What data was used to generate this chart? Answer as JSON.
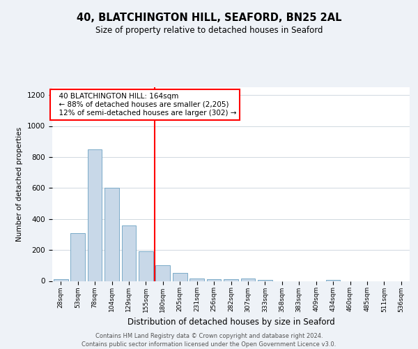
{
  "title1": "40, BLATCHINGTON HILL, SEAFORD, BN25 2AL",
  "title2": "Size of property relative to detached houses in Seaford",
  "xlabel": "Distribution of detached houses by size in Seaford",
  "ylabel": "Number of detached properties",
  "categories": [
    "28sqm",
    "53sqm",
    "78sqm",
    "104sqm",
    "129sqm",
    "155sqm",
    "180sqm",
    "205sqm",
    "231sqm",
    "256sqm",
    "282sqm",
    "307sqm",
    "333sqm",
    "358sqm",
    "383sqm",
    "409sqm",
    "434sqm",
    "460sqm",
    "485sqm",
    "511sqm",
    "536sqm"
  ],
  "values": [
    10,
    310,
    850,
    600,
    360,
    190,
    100,
    50,
    15,
    10,
    10,
    15,
    5,
    0,
    0,
    0,
    8,
    0,
    0,
    0,
    0
  ],
  "bar_color": "#c8d8e8",
  "bar_edge_color": "#7aaac8",
  "vline_x": 5.5,
  "vline_color": "red",
  "annotation_text": "  40 BLATCHINGTON HILL: 164sqm\n  ← 88% of detached houses are smaller (2,205)\n  12% of semi-detached houses are larger (302) →",
  "annotation_box_color": "white",
  "annotation_box_edge": "red",
  "ylim": [
    0,
    1250
  ],
  "yticks": [
    0,
    200,
    400,
    600,
    800,
    1000,
    1200
  ],
  "footer": "Contains HM Land Registry data © Crown copyright and database right 2024.\nContains public sector information licensed under the Open Government Licence v3.0.",
  "bg_color": "#eef2f7",
  "plot_bg_color": "white",
  "grid_color": "#d0d8e0"
}
